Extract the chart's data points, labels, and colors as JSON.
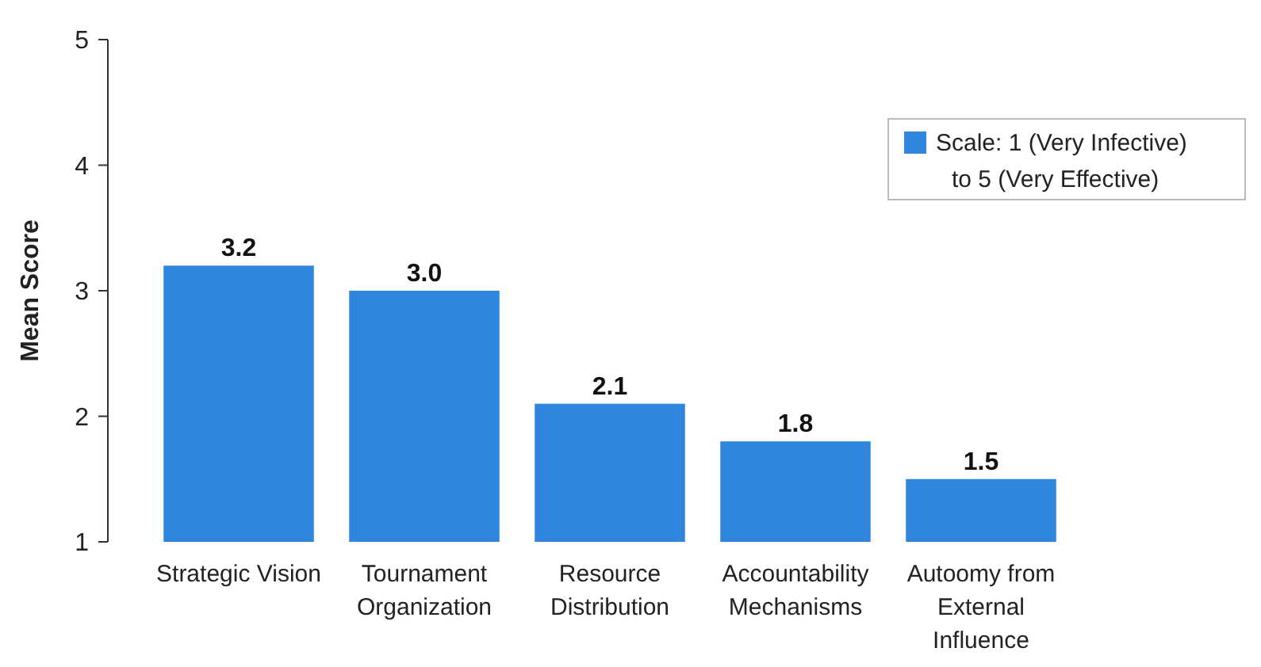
{
  "chart_data": {
    "type": "bar",
    "ylabel": "Mean Score",
    "categories": [
      "Strategic Vision",
      "Tournament Organization",
      "Resource Distribution",
      "Accountability Mechanisms",
      "Autoomy from External Influence"
    ],
    "series": [
      {
        "name": "Scale: 1 (Very Infective) to 5 (Very Effective)",
        "color": "#2f86dc",
        "values": [
          3.2,
          3.0,
          2.1,
          1.8,
          1.5
        ],
        "value_labels": [
          "3.2",
          "3.0",
          "2.1",
          "1.8",
          "1.5"
        ]
      }
    ],
    "ylim": [
      1,
      5
    ],
    "yticks": [
      1,
      2,
      3,
      4,
      5
    ],
    "legend": "top right",
    "grid": false
  }
}
